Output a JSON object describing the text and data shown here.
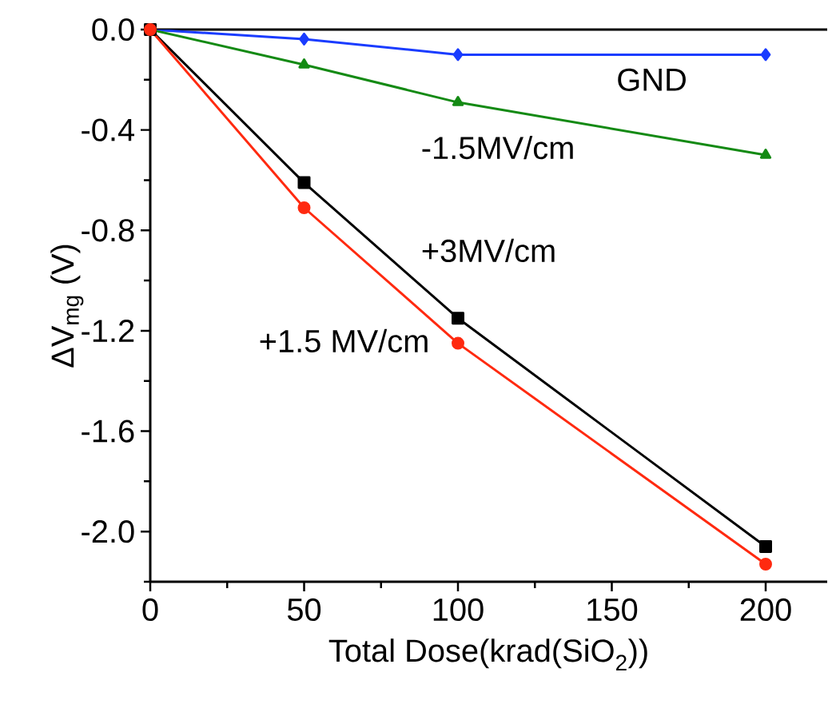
{
  "chart_data": {
    "type": "line",
    "xlabel": "Total Dose(krad(SiO$_{2}$))",
    "ylabel": "ΔV$_{mg}$ (V)",
    "x": [
      0,
      50,
      100,
      200
    ],
    "series": [
      {
        "name": "GND",
        "color": "#1a3cff",
        "marker": "diamond",
        "values": [
          0,
          -0.038,
          -0.1,
          -0.1
        ]
      },
      {
        "name": "-1.5MV/cm",
        "color": "#148a14",
        "marker": "triangle",
        "values": [
          0,
          -0.14,
          -0.29,
          -0.5
        ]
      },
      {
        "name": "+3MV/cm",
        "color": "#000000",
        "marker": "square",
        "values": [
          0,
          -0.61,
          -1.15,
          -2.06
        ]
      },
      {
        "name": "+1.5 MV/cm",
        "color": "#ff2a10",
        "marker": "circle",
        "values": [
          0,
          -0.71,
          -1.25,
          -2.13
        ]
      }
    ],
    "xlim": [
      0,
      220
    ],
    "ylim": [
      -2.2,
      0
    ],
    "xticks": [
      0,
      {
        "value": 25,
        "label": null
      },
      50,
      {
        "value": 75,
        "label": null
      },
      100,
      {
        "value": 125,
        "label": null
      },
      150,
      {
        "value": 175,
        "label": null
      },
      200
    ],
    "yticks": [
      {
        "value": 0,
        "label": "0.0"
      },
      {
        "value": -0.2,
        "label": null
      },
      {
        "value": -0.4,
        "label": "-0.4"
      },
      {
        "value": -0.6,
        "label": null
      },
      {
        "value": -0.8,
        "label": "-0.8"
      },
      {
        "value": -1.0,
        "label": null
      },
      {
        "value": -1.2,
        "label": "-1.2"
      },
      {
        "value": -1.4,
        "label": null
      },
      {
        "value": -1.6,
        "label": "-1.6"
      },
      {
        "value": -1.8,
        "label": null
      },
      {
        "value": -2.0,
        "label": "-2.0"
      },
      {
        "value": -2.2,
        "label": null
      }
    ],
    "grid": false,
    "line_style": "solid"
  }
}
